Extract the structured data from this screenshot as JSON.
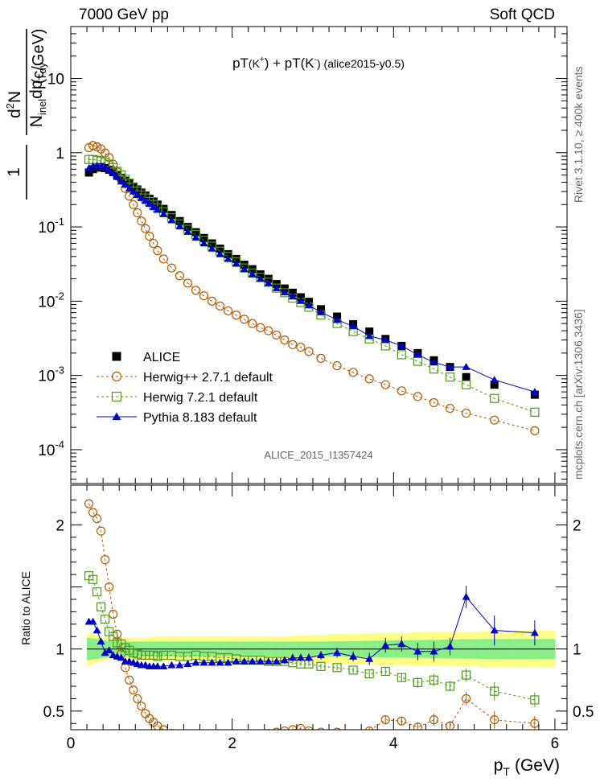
{
  "header": {
    "left": "7000 GeV pp",
    "right": "Soft QCD"
  },
  "side_texts": {
    "rivet": "Rivet 3.1.10, ≥ 400k events",
    "mcplots": "mcplots.cern.ch [arXiv:1306.3436]"
  },
  "watermark": "ALICE_2015_I1357424",
  "ratio_ylabel": "Ratio to ALICE",
  "colors": {
    "alice": "#000000",
    "herwigpp": "#b35900",
    "herwig7": "#4b9a18",
    "pythia": "#0000cc",
    "band_yellow": "#ffff88",
    "band_green": "#88ee88"
  },
  "chart_data": {
    "type": "scatter",
    "title": "pT(K⁺) + pT(K⁻) (alice2015-y0.5)",
    "title_parts": {
      "main": "pT",
      "k1": "(K",
      "sup1": "+",
      "mid": ") + pT(K",
      "sup2": "-",
      "end": ") (alice2015-y0.5)"
    },
    "xlabel": "p_T (GeV)",
    "xlabel_parts": {
      "p": "p",
      "sub": "T",
      "unit": "(GeV)"
    },
    "ylabel": "1/N_inel d²N/dp_T dy (c/GeV)",
    "ylabel_parts": {
      "one": "1",
      "num": "d",
      "num_sup": "2",
      "num_n": "N",
      "den_n": "N",
      "den_sub": "inel",
      "den_dp": "dp",
      "den_sub2": "T",
      "den_dy": "dy",
      "unit": "(c/GeV)"
    },
    "xlim": [
      0,
      6.15
    ],
    "ylim_main": [
      3.5e-05,
      50
    ],
    "yscale_main": "log",
    "ylim_ratio": [
      0.35,
      2.32
    ],
    "x_ticks": [
      0,
      2,
      4,
      6
    ],
    "x_tick_labels": [
      "0",
      "2",
      "4",
      "6"
    ],
    "y_ticks_main": [
      0.0001,
      0.001,
      0.01,
      0.1,
      1,
      10
    ],
    "y_tick_labels_main": [
      {
        "base": "10",
        "exp": "-4"
      },
      {
        "base": "10",
        "exp": "-3"
      },
      {
        "base": "10",
        "exp": "-2"
      },
      {
        "base": "10",
        "exp": "-1"
      },
      {
        "base": "1",
        "exp": ""
      },
      {
        "base": "10",
        "exp": ""
      }
    ],
    "y_ticks_ratio": [
      0.5,
      1,
      1.5,
      2
    ],
    "y_tick_labels_ratio": [
      "0.5",
      "1",
      "",
      "2"
    ],
    "x": [
      0.225,
      0.275,
      0.325,
      0.375,
      0.425,
      0.475,
      0.525,
      0.575,
      0.625,
      0.675,
      0.725,
      0.775,
      0.825,
      0.875,
      0.925,
      0.975,
      1.025,
      1.075,
      1.15,
      1.25,
      1.35,
      1.45,
      1.55,
      1.65,
      1.75,
      1.85,
      1.95,
      2.05,
      2.15,
      2.25,
      2.35,
      2.45,
      2.55,
      2.65,
      2.75,
      2.85,
      2.95,
      3.1,
      3.3,
      3.5,
      3.7,
      3.9,
      4.1,
      4.3,
      4.5,
      4.7,
      4.9,
      5.25,
      5.75
    ],
    "series": [
      {
        "name": "ALICE",
        "label": "ALICE",
        "marker": "square-filled",
        "color": "#000000",
        "values": [
          0.54,
          0.6,
          0.63,
          0.64,
          0.62,
          0.59,
          0.55,
          0.5,
          0.46,
          0.42,
          0.39,
          0.35,
          0.32,
          0.29,
          0.265,
          0.24,
          0.22,
          0.2,
          0.175,
          0.145,
          0.12,
          0.1,
          0.085,
          0.071,
          0.06,
          0.051,
          0.043,
          0.037,
          0.031,
          0.027,
          0.023,
          0.02,
          0.017,
          0.0148,
          0.013,
          0.0113,
          0.0098,
          0.0078,
          0.0062,
          0.0049,
          0.0039,
          0.0031,
          0.0025,
          0.002,
          0.0016,
          0.0013,
          0.00095,
          0.00075,
          0.00055
        ]
      },
      {
        "name": "Herwig++ 2.7.1 default",
        "label": "Herwig++ 2.7.1 default",
        "marker": "circle-open",
        "color": "#b35900",
        "values": [
          1.17,
          1.25,
          1.2,
          1.12,
          0.99,
          0.86,
          0.7,
          0.55,
          0.43,
          0.33,
          0.26,
          0.2,
          0.155,
          0.12,
          0.095,
          0.075,
          0.06,
          0.048,
          0.037,
          0.028,
          0.022,
          0.0175,
          0.014,
          0.0118,
          0.01,
          0.0086,
          0.0074,
          0.0065,
          0.0057,
          0.005,
          0.0044,
          0.004,
          0.0035,
          0.003,
          0.0026,
          0.0024,
          0.0021,
          0.0017,
          0.00135,
          0.0011,
          0.0009,
          0.00075,
          0.00062,
          0.00052,
          0.00043,
          0.00036,
          0.00031,
          0.00025,
          0.00018
        ],
        "ratio": [
          2.17,
          2.1,
          2.05,
          1.95,
          1.72,
          1.5,
          1.28,
          1.12,
          0.96,
          0.85,
          0.75,
          0.67,
          0.6,
          0.54,
          0.48,
          0.44,
          0.41,
          0.38,
          0.35,
          0.32,
          0.3,
          0.29,
          0.28,
          0.27,
          0.27,
          0.27,
          0.27,
          0.28,
          0.29,
          0.3,
          0.31,
          0.32,
          0.33,
          0.34,
          0.35,
          0.36,
          0.34,
          0.33,
          0.33,
          0.31,
          0.34,
          0.43,
          0.42,
          0.37,
          0.43,
          0.38,
          0.6,
          0.43,
          0.4
        ]
      },
      {
        "name": "Herwig 7.2.1 default",
        "label": "Herwig 7.2.1 default",
        "marker": "square-open",
        "color": "#4b9a18",
        "values": [
          0.81,
          0.81,
          0.79,
          0.77,
          0.74,
          0.7,
          0.63,
          0.56,
          0.5,
          0.44,
          0.39,
          0.345,
          0.305,
          0.27,
          0.245,
          0.22,
          0.2,
          0.18,
          0.16,
          0.133,
          0.11,
          0.093,
          0.079,
          0.066,
          0.055,
          0.047,
          0.04,
          0.034,
          0.028,
          0.024,
          0.021,
          0.018,
          0.015,
          0.013,
          0.011,
          0.0096,
          0.0083,
          0.0065,
          0.005,
          0.0039,
          0.0031,
          0.0025,
          0.0019,
          0.00155,
          0.00122,
          0.00095,
          0.00075,
          0.00049,
          0.00032
        ],
        "ratio": [
          1.59,
          1.56,
          1.46,
          1.34,
          1.24,
          1.14,
          1.1,
          1.05,
          1.04,
          1.01,
          0.99,
          0.97,
          0.96,
          0.95,
          0.95,
          0.95,
          0.95,
          0.94,
          0.95,
          0.95,
          0.94,
          0.94,
          0.95,
          0.94,
          0.94,
          0.93,
          0.93,
          0.92,
          0.91,
          0.91,
          0.91,
          0.9,
          0.9,
          0.9,
          0.89,
          0.88,
          0.88,
          0.86,
          0.85,
          0.83,
          0.8,
          0.82,
          0.77,
          0.73,
          0.75,
          0.7,
          0.79,
          0.66,
          0.59
        ]
      },
      {
        "name": "Pythia 8.183 default",
        "label": "Pythia 8.183 default",
        "marker": "triangle-filled",
        "color": "#0000cc",
        "values": [
          0.62,
          0.66,
          0.67,
          0.66,
          0.63,
          0.59,
          0.53,
          0.47,
          0.41,
          0.37,
          0.33,
          0.3,
          0.27,
          0.245,
          0.225,
          0.205,
          0.185,
          0.17,
          0.149,
          0.123,
          0.102,
          0.086,
          0.072,
          0.06,
          0.051,
          0.043,
          0.037,
          0.032,
          0.027,
          0.023,
          0.02,
          0.0175,
          0.015,
          0.0132,
          0.0116,
          0.0101,
          0.0088,
          0.0071,
          0.0056,
          0.0046,
          0.0034,
          0.003,
          0.0025,
          0.0019,
          0.0015,
          0.0013,
          0.0013,
          0.00087,
          0.0006
        ],
        "ratio": [
          1.22,
          1.22,
          1.15,
          1.06,
          0.97,
          0.99,
          0.95,
          0.94,
          0.93,
          0.9,
          0.9,
          0.89,
          0.88,
          0.87,
          0.87,
          0.86,
          0.86,
          0.86,
          0.86,
          0.87,
          0.87,
          0.88,
          0.89,
          0.89,
          0.89,
          0.89,
          0.89,
          0.9,
          0.9,
          0.9,
          0.9,
          0.9,
          0.9,
          0.91,
          0.93,
          0.93,
          0.93,
          0.95,
          0.97,
          0.94,
          0.92,
          1.03,
          1.04,
          0.98,
          0.98,
          1.02,
          1.42,
          1.15,
          1.13
        ]
      }
    ],
    "ratio_error_indices": [
      33,
      34,
      35,
      36,
      37,
      38,
      39,
      40,
      41,
      42,
      43,
      44,
      45,
      46,
      47,
      48
    ],
    "ratio_errors": [
      0.03,
      0.03,
      0.03,
      0.035,
      0.035,
      0.04,
      0.04,
      0.05,
      0.06,
      0.06,
      0.07,
      0.08,
      0.07,
      0.09,
      0.12,
      0.1
    ],
    "band_green_half": [
      0.09,
      0.085,
      0.08,
      0.075,
      0.07,
      0.065,
      0.06,
      0.06,
      0.06,
      0.06,
      0.06,
      0.06,
      0.06,
      0.06,
      0.06,
      0.06,
      0.06,
      0.06,
      0.06,
      0.06,
      0.06,
      0.06,
      0.06,
      0.06,
      0.06,
      0.06,
      0.06,
      0.06,
      0.06,
      0.06,
      0.06,
      0.06,
      0.06,
      0.06,
      0.06,
      0.06,
      0.06,
      0.06,
      0.062,
      0.064,
      0.066,
      0.068,
      0.07,
      0.072,
      0.074,
      0.076,
      0.078,
      0.08,
      0.08
    ],
    "band_yellow_half": [
      0.13,
      0.12,
      0.11,
      0.1,
      0.09,
      0.085,
      0.08,
      0.085,
      0.09,
      0.09,
      0.09,
      0.09,
      0.09,
      0.09,
      0.09,
      0.095,
      0.095,
      0.1,
      0.1,
      0.1,
      0.1,
      0.1,
      0.1,
      0.1,
      0.1,
      0.1,
      0.1,
      0.1,
      0.1,
      0.1,
      0.1,
      0.1,
      0.1,
      0.1,
      0.105,
      0.11,
      0.11,
      0.115,
      0.12,
      0.12,
      0.125,
      0.13,
      0.13,
      0.135,
      0.135,
      0.14,
      0.14,
      0.145,
      0.15
    ]
  }
}
